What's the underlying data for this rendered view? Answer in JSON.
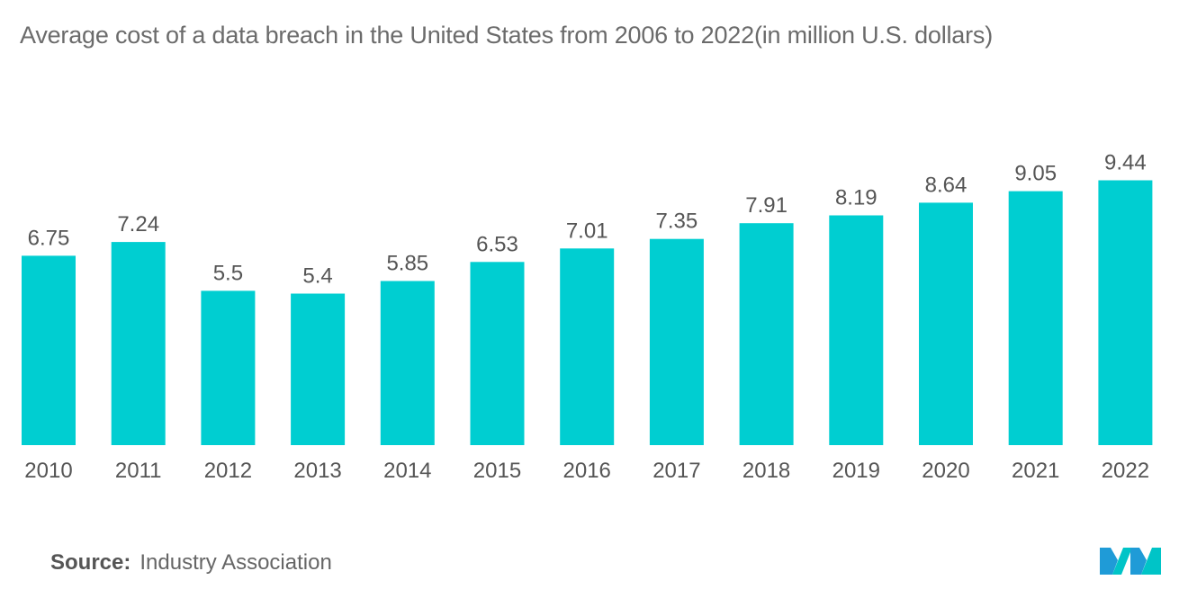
{
  "chart_data": {
    "type": "bar",
    "title": "Average cost of a data breach in the United States from 2006 to 2022(in million U.S. dollars)",
    "categories": [
      "2010",
      "2011",
      "2012",
      "2013",
      "2014",
      "2015",
      "2016",
      "2017",
      "2018",
      "2019",
      "2020",
      "2021",
      "2022"
    ],
    "values": [
      6.75,
      7.24,
      5.5,
      5.4,
      5.85,
      6.53,
      7.01,
      7.35,
      7.91,
      8.19,
      8.64,
      9.05,
      9.44
    ],
    "value_labels": [
      "6.75",
      "7.24",
      "5.5",
      "5.4",
      "5.85",
      "6.53",
      "7.01",
      "7.35",
      "7.91",
      "8.19",
      "8.64",
      "9.05",
      "9.44"
    ],
    "xlabel": "",
    "ylabel": "",
    "ylim": [
      0,
      10
    ],
    "grid": false,
    "legend": "none",
    "bar_color": "#00CED1",
    "data_label_color": "#555555",
    "tick_label_color": "#555555"
  },
  "footer": {
    "source_label": "Source:",
    "source_text": "Industry Association"
  },
  "logo": {
    "icon": "mordor-intelligence-logo-icon",
    "colors": [
      "#1f9bd7",
      "#00c4c7",
      "#0a4f8a"
    ]
  }
}
